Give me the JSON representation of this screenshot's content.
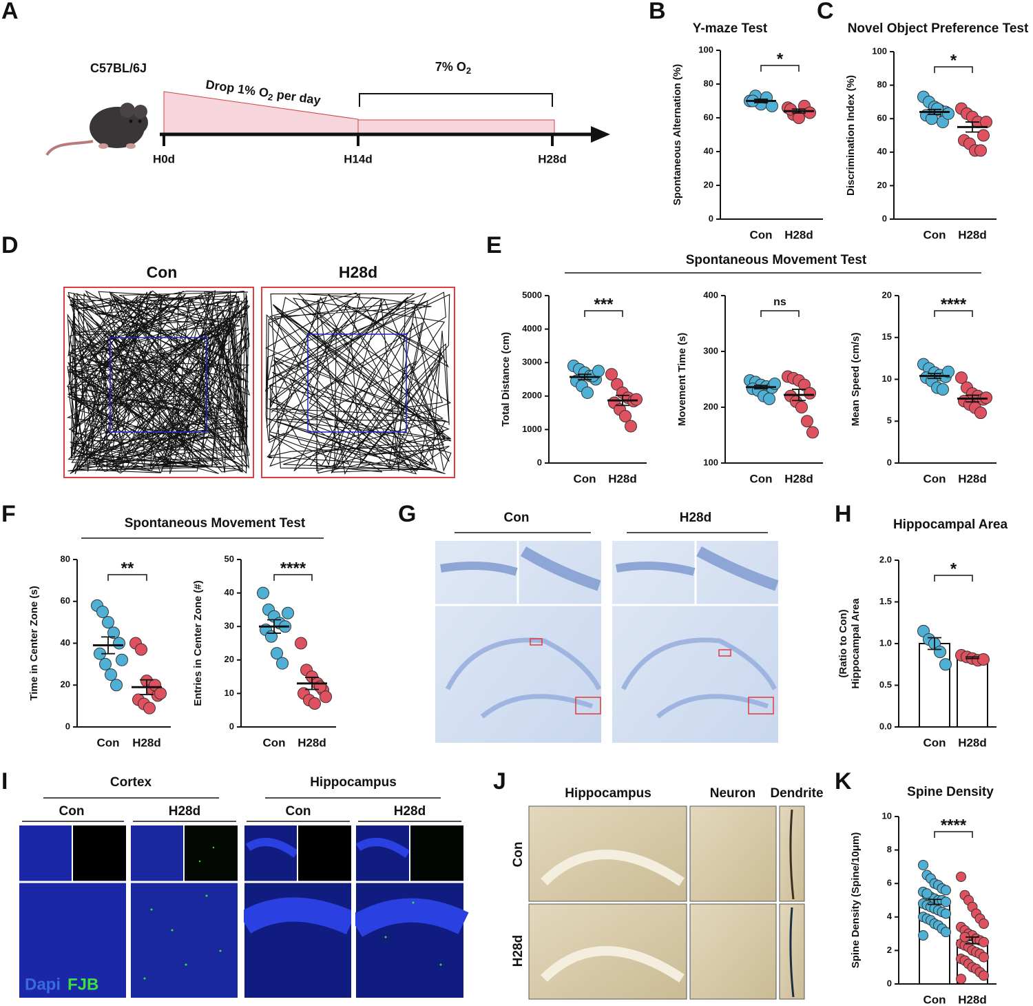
{
  "panel_letters": [
    "A",
    "B",
    "C",
    "D",
    "E",
    "F",
    "G",
    "H",
    "I",
    "J",
    "K"
  ],
  "timeline": {
    "strain": "C57BL/6J",
    "drop_label": [
      "Drop 1% O",
      "2",
      " per day"
    ],
    "hypoxia_label": [
      "7% O",
      "2"
    ],
    "days": [
      "H0d",
      "H14d",
      "H28d"
    ]
  },
  "track_panel": {
    "labels": [
      "Con",
      "H28d"
    ]
  },
  "group_titles": [
    "Spontaneous Movement Test",
    "Spontaneous Movement Test"
  ],
  "histology": {
    "groups": [
      "Con",
      "H28d"
    ]
  },
  "fluorescence": {
    "regions": [
      "Cortex",
      "Hippocampus"
    ],
    "groups": [
      "Con",
      "H28d",
      "Con",
      "H28d"
    ],
    "legend": [
      "Dapi",
      "FJB"
    ]
  },
  "golgi": {
    "columns": [
      "Hippocampus",
      "Neuron",
      "Dendrite"
    ],
    "rows": [
      "Con",
      "H28d"
    ]
  },
  "chart_data": [
    {
      "type": "dot",
      "title": "Y-maze Test",
      "ylabel": "Spontaneous Alternation (%)",
      "categories": [
        "Con",
        "H28d"
      ],
      "ylim": [
        0,
        100
      ],
      "yticks": [
        0,
        20,
        40,
        60,
        80,
        100
      ],
      "significance": "*",
      "groups": [
        {
          "color": "#4fb0d6",
          "values": [
            70,
            73,
            68,
            72,
            67,
            70
          ],
          "mean": 70,
          "sem": 1
        },
        {
          "color": "#e0515f",
          "values": [
            66,
            62,
            60,
            67,
            63,
            65
          ],
          "mean": 64,
          "sem": 1.2
        }
      ]
    },
    {
      "type": "dot",
      "title": "Novel Object Preference Test",
      "ylabel": "Discrimination Index (%)",
      "categories": [
        "Con",
        "H28d"
      ],
      "ylim": [
        0,
        100
      ],
      "yticks": [
        0,
        20,
        40,
        60,
        80,
        100
      ],
      "significance": "*",
      "groups": [
        {
          "color": "#4fb0d6",
          "values": [
            73,
            70,
            67,
            65,
            64,
            62,
            60,
            66,
            58,
            63
          ],
          "mean": 64,
          "sem": 1.5
        },
        {
          "color": "#e0515f",
          "values": [
            66,
            63,
            61,
            58,
            50,
            47,
            45,
            41,
            41,
            58
          ],
          "mean": 55,
          "sem": 3
        }
      ]
    },
    {
      "type": "dot",
      "ylabel": "Total Distance  (cm)",
      "categories": [
        "Con",
        "H28d"
      ],
      "ylim": [
        0,
        5000
      ],
      "yticks": [
        0,
        1000,
        2000,
        3000,
        4000,
        5000
      ],
      "significance": "***",
      "groups": [
        {
          "color": "#4fb0d6",
          "values": [
            2900,
            2800,
            2700,
            2600,
            2500,
            2450,
            2300,
            2100,
            2600,
            2750
          ],
          "mean": 2570,
          "sem": 80
        },
        {
          "color": "#e0515f",
          "values": [
            2650,
            2350,
            2100,
            1950,
            1850,
            1800,
            1600,
            1400,
            1100,
            1900
          ],
          "mean": 1870,
          "sem": 150
        }
      ]
    },
    {
      "type": "dot",
      "ylabel": "Movement Time (s)",
      "categories": [
        "Con",
        "H28d"
      ],
      "ylim": [
        100,
        400
      ],
      "yticks": [
        100,
        200,
        300,
        400
      ],
      "significance": "ns",
      "groups": [
        {
          "color": "#4fb0d6",
          "values": [
            248,
            245,
            240,
            237,
            235,
            233,
            230,
            220,
            215,
            242
          ],
          "mean": 236,
          "sem": 3
        },
        {
          "color": "#e0515f",
          "values": [
            255,
            252,
            248,
            240,
            225,
            220,
            210,
            200,
            175,
            155
          ],
          "mean": 222,
          "sem": 10
        }
      ]
    },
    {
      "type": "dot",
      "ylabel": "Mean Speed (cm/s)",
      "categories": [
        "Con",
        "H28d"
      ],
      "ylim": [
        0,
        20
      ],
      "yticks": [
        0,
        5,
        10,
        15,
        20
      ],
      "significance": "****",
      "groups": [
        {
          "color": "#4fb0d6",
          "values": [
            11.8,
            11.3,
            10.8,
            10.5,
            10.3,
            10.2,
            9.8,
            9,
            8.8,
            10.9
          ],
          "mean": 10.4,
          "sem": 0.3
        },
        {
          "color": "#e0515f",
          "values": [
            10.2,
            9,
            8.3,
            8,
            7.6,
            7.4,
            7,
            6.6,
            6,
            7.8
          ],
          "mean": 7.7,
          "sem": 0.4
        }
      ]
    },
    {
      "type": "dot",
      "ylabel": "Time in Center Zone (s)",
      "categories": [
        "Con",
        "H28d"
      ],
      "ylim": [
        0,
        80
      ],
      "yticks": [
        0,
        20,
        40,
        60,
        80
      ],
      "significance": "**",
      "groups": [
        {
          "color": "#4fb0d6",
          "values": [
            58,
            55,
            50,
            45,
            40,
            35,
            30,
            25,
            20,
            32
          ],
          "mean": 39,
          "sem": 4
        },
        {
          "color": "#e0515f",
          "values": [
            40,
            37,
            22,
            18,
            15,
            13,
            11,
            9,
            20,
            16
          ],
          "mean": 19,
          "sem": 3.5
        }
      ]
    },
    {
      "type": "dot",
      "ylabel": "Entries in Center Zone (#)",
      "categories": [
        "Con",
        "H28d"
      ],
      "ylim": [
        0,
        50
      ],
      "yticks": [
        0,
        10,
        20,
        30,
        40,
        50
      ],
      "significance": "****",
      "groups": [
        {
          "color": "#4fb0d6",
          "values": [
            40,
            35,
            33,
            31,
            30,
            29,
            27,
            22,
            19,
            34
          ],
          "mean": 30,
          "sem": 2
        },
        {
          "color": "#e0515f",
          "values": [
            25,
            17,
            15,
            13,
            11,
            10,
            8,
            7,
            12,
            9
          ],
          "mean": 13,
          "sem": 1.8
        }
      ]
    },
    {
      "type": "bar",
      "title": "Hippocampal Area",
      "ylabel": [
        "Hippocampal Area",
        "(Ratio to Con)"
      ],
      "categories": [
        "Con",
        "H28d"
      ],
      "ylim": [
        0,
        2
      ],
      "yticks": [
        {
          "value": 0,
          "label": "0.0"
        },
        0.5,
        {
          "value": 1,
          "label": "1.0"
        },
        1.5,
        {
          "value": 2,
          "label": "2.0"
        }
      ],
      "significance": "*",
      "groups": [
        {
          "color": "#4fb0d6",
          "values": [
            1.15,
            1.05,
            1.0,
            0.9,
            0.75
          ],
          "mean": 1.0,
          "sem": 0.07
        },
        {
          "color": "#e0515f",
          "values": [
            0.86,
            0.84,
            0.82,
            0.8,
            0.81
          ],
          "mean": 0.83,
          "sem": 0.01
        }
      ]
    },
    {
      "type": "bar",
      "title": "Spine Density",
      "ylabel": "Spine Density (Spine/10μm)",
      "categories": [
        "Con",
        "H28d"
      ],
      "ylim": [
        0,
        10
      ],
      "yticks": [
        0,
        2,
        4,
        6,
        8,
        10
      ],
      "significance": "****",
      "groups": [
        {
          "color": "#4fb0d6",
          "values": [
            7.1,
            6.5,
            6.3,
            6.0,
            5.9,
            5.7,
            5.6,
            5.5,
            5.3,
            5.2,
            5.1,
            5.0,
            5.0,
            4.9,
            4.8,
            4.7,
            4.6,
            4.5,
            4.4,
            4.3,
            4.2,
            4.0,
            3.9,
            3.8,
            3.6,
            3.5,
            3.3,
            3.1,
            2.9,
            5.4
          ],
          "mean": 4.9,
          "sem": 0.15
        },
        {
          "color": "#e0515f",
          "values": [
            6.4,
            5.3,
            5.0,
            4.6,
            4.2,
            3.9,
            3.6,
            3.4,
            3.2,
            3.0,
            2.9,
            2.7,
            2.6,
            2.5,
            2.4,
            2.3,
            2.2,
            2.0,
            1.9,
            1.8,
            1.6,
            1.5,
            1.4,
            1.2,
            1.0,
            0.9,
            0.7,
            0.5,
            0.3,
            2.8
          ],
          "mean": 2.6,
          "sem": 0.2
        }
      ]
    }
  ]
}
